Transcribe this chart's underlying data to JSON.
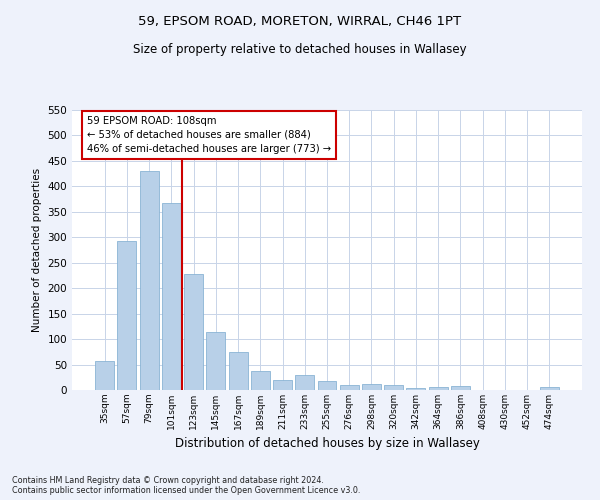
{
  "title": "59, EPSOM ROAD, MORETON, WIRRAL, CH46 1PT",
  "subtitle": "Size of property relative to detached houses in Wallasey",
  "xlabel": "Distribution of detached houses by size in Wallasey",
  "ylabel": "Number of detached properties",
  "bar_labels": [
    "35sqm",
    "57sqm",
    "79sqm",
    "101sqm",
    "123sqm",
    "145sqm",
    "167sqm",
    "189sqm",
    "211sqm",
    "233sqm",
    "255sqm",
    "276sqm",
    "298sqm",
    "320sqm",
    "342sqm",
    "364sqm",
    "386sqm",
    "408sqm",
    "430sqm",
    "452sqm",
    "474sqm"
  ],
  "bar_values": [
    57,
    293,
    430,
    367,
    227,
    113,
    75,
    38,
    20,
    29,
    17,
    9,
    11,
    9,
    4,
    6,
    7,
    0,
    0,
    0,
    5
  ],
  "bar_color": "#b8d0e8",
  "bar_edge_color": "#8ab4d4",
  "vline_color": "#cc0000",
  "annotation_title": "59 EPSOM ROAD: 108sqm",
  "annotation_line1": "← 53% of detached houses are smaller (884)",
  "annotation_line2": "46% of semi-detached houses are larger (773) →",
  "annotation_box_color": "#cc0000",
  "ylim": [
    0,
    550
  ],
  "yticks": [
    0,
    50,
    100,
    150,
    200,
    250,
    300,
    350,
    400,
    450,
    500,
    550
  ],
  "bg_color": "#eef2fb",
  "plot_bg_color": "#ffffff",
  "grid_color": "#c8d4e8",
  "footer_line1": "Contains HM Land Registry data © Crown copyright and database right 2024.",
  "footer_line2": "Contains public sector information licensed under the Open Government Licence v3.0."
}
